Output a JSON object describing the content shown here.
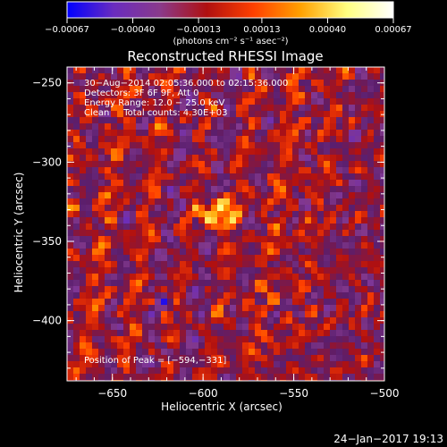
{
  "chart_data": {
    "type": "heatmap",
    "title": "Reconstructed RHESSI Image",
    "colorbar": {
      "ticks": [
        "-0.00067",
        "-0.00040",
        "-0.00013",
        "0.00013",
        "0.00040",
        "0.00067"
      ],
      "range": [
        -0.00067,
        0.00067
      ],
      "unit": "(photons cm⁻² s⁻¹ asec⁻²)",
      "colormap": [
        "#0000ff",
        "#6a2cbf",
        "#8a3a8a",
        "#b01010",
        "#ff4000",
        "#ffa000",
        "#ffff80",
        "#ffffff"
      ]
    },
    "xlabel": "Heliocentric X (arcsec)",
    "ylabel": "Heliocentric Y (arcsec)",
    "xlim": [
      -675,
      -500
    ],
    "ylim": [
      -438,
      -240
    ],
    "x_ticks": [
      {
        "value": -650,
        "label": "−650"
      },
      {
        "value": -600,
        "label": "−600"
      },
      {
        "value": -550,
        "label": "−550"
      },
      {
        "value": -500,
        "label": "−500"
      }
    ],
    "y_ticks": [
      {
        "value": -250,
        "label": "−250"
      },
      {
        "value": -300,
        "label": "−300"
      },
      {
        "value": -350,
        "label": "−350"
      },
      {
        "value": -400,
        "label": "−400"
      }
    ],
    "annotations": [
      "30−Aug−2014 02:05:36.000 to 02:15:36.000",
      "Detectors: 3F 6F 9F, Att 0",
      "Energy Range: 12.0 − 25.0 keV",
      "Clean     Total counts: 4.30E+03"
    ],
    "peak_label": "Position of Peak = [−594,−331]",
    "peak": [
      -594,
      -331
    ]
  },
  "footer": {
    "timestamp": "24−Jan−2017 19:13"
  }
}
